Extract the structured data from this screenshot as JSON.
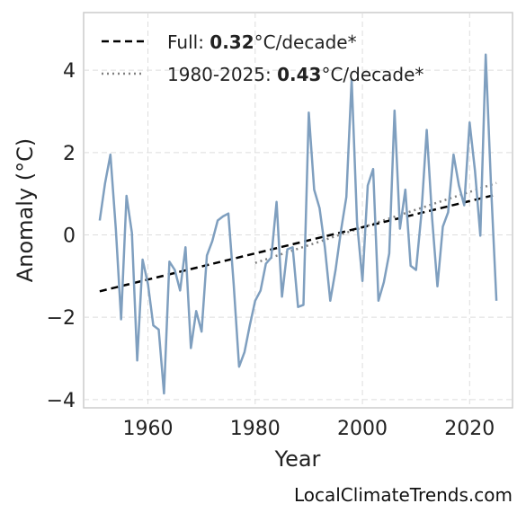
{
  "chart_data": {
    "type": "line",
    "xlabel": "Year",
    "ylabel": "Anomaly (°C)",
    "xlim": [
      1948,
      2028
    ],
    "ylim": [
      -4.2,
      5.4
    ],
    "xticks": [
      1960,
      1980,
      2000,
      2020
    ],
    "yticks": [
      -4,
      -2,
      0,
      2,
      4
    ],
    "ytick_labels": [
      "−4",
      "−2",
      "0",
      "2",
      "4"
    ],
    "grid": true,
    "legend_position": "top-left",
    "legend": [
      {
        "prefix": "Full: ",
        "value": "0.32",
        "suffix": "°C/decade*",
        "style": "dashed",
        "color": "#000000"
      },
      {
        "prefix": "1980-2025: ",
        "value": "0.43",
        "suffix": "°C/decade*",
        "style": "dotted",
        "color": "#808080"
      }
    ],
    "series": [
      {
        "color": "#7f9fbf",
        "x": [
          1951,
          1952,
          1953,
          1954,
          1955,
          1956,
          1957,
          1958,
          1959,
          1960,
          1961,
          1962,
          1963,
          1964,
          1965,
          1966,
          1967,
          1968,
          1969,
          1970,
          1971,
          1972,
          1973,
          1974,
          1975,
          1976,
          1977,
          1978,
          1979,
          1980,
          1981,
          1982,
          1983,
          1984,
          1985,
          1986,
          1987,
          1988,
          1989,
          1990,
          1991,
          1992,
          1993,
          1994,
          1995,
          1996,
          1997,
          1998,
          1999,
          2000,
          2001,
          2002,
          2003,
          2004,
          2005,
          2006,
          2007,
          2008,
          2009,
          2010,
          2011,
          2012,
          2013,
          2014,
          2015,
          2016,
          2017,
          2018,
          2019,
          2020,
          2021,
          2022,
          2023,
          2024,
          2025
        ],
        "y": [
          0.35,
          1.25,
          1.95,
          0.15,
          -2.05,
          0.95,
          0.05,
          -3.05,
          -0.6,
          -1.2,
          -2.2,
          -2.3,
          -3.85,
          -0.65,
          -0.85,
          -1.35,
          -0.3,
          -2.75,
          -1.85,
          -2.35,
          -0.5,
          -0.15,
          0.35,
          0.45,
          0.52,
          -1.2,
          -3.2,
          -2.85,
          -2.2,
          -1.6,
          -1.35,
          -0.7,
          -0.55,
          0.8,
          -1.5,
          -0.35,
          -0.3,
          -1.75,
          -1.7,
          2.97,
          1.1,
          0.65,
          -0.3,
          -1.6,
          -0.85,
          0.1,
          0.92,
          3.78,
          0.3,
          -1.12,
          1.2,
          1.6,
          -1.6,
          -1.15,
          -0.45,
          3.02,
          0.15,
          1.1,
          -0.75,
          -0.85,
          0.5,
          2.55,
          0.4,
          -1.25,
          0.2,
          0.55,
          1.95,
          1.2,
          0.72,
          2.73,
          1.55,
          -0.02,
          4.38,
          1.2,
          -1.6
        ]
      }
    ],
    "trend_full": {
      "x": [
        1951,
        2025
      ],
      "y": [
        -1.37,
        0.98
      ]
    },
    "trend_recent": {
      "x": [
        1980,
        2025
      ],
      "y": [
        -0.68,
        1.26
      ]
    }
  },
  "credit": "LocalClimateTrends.com"
}
